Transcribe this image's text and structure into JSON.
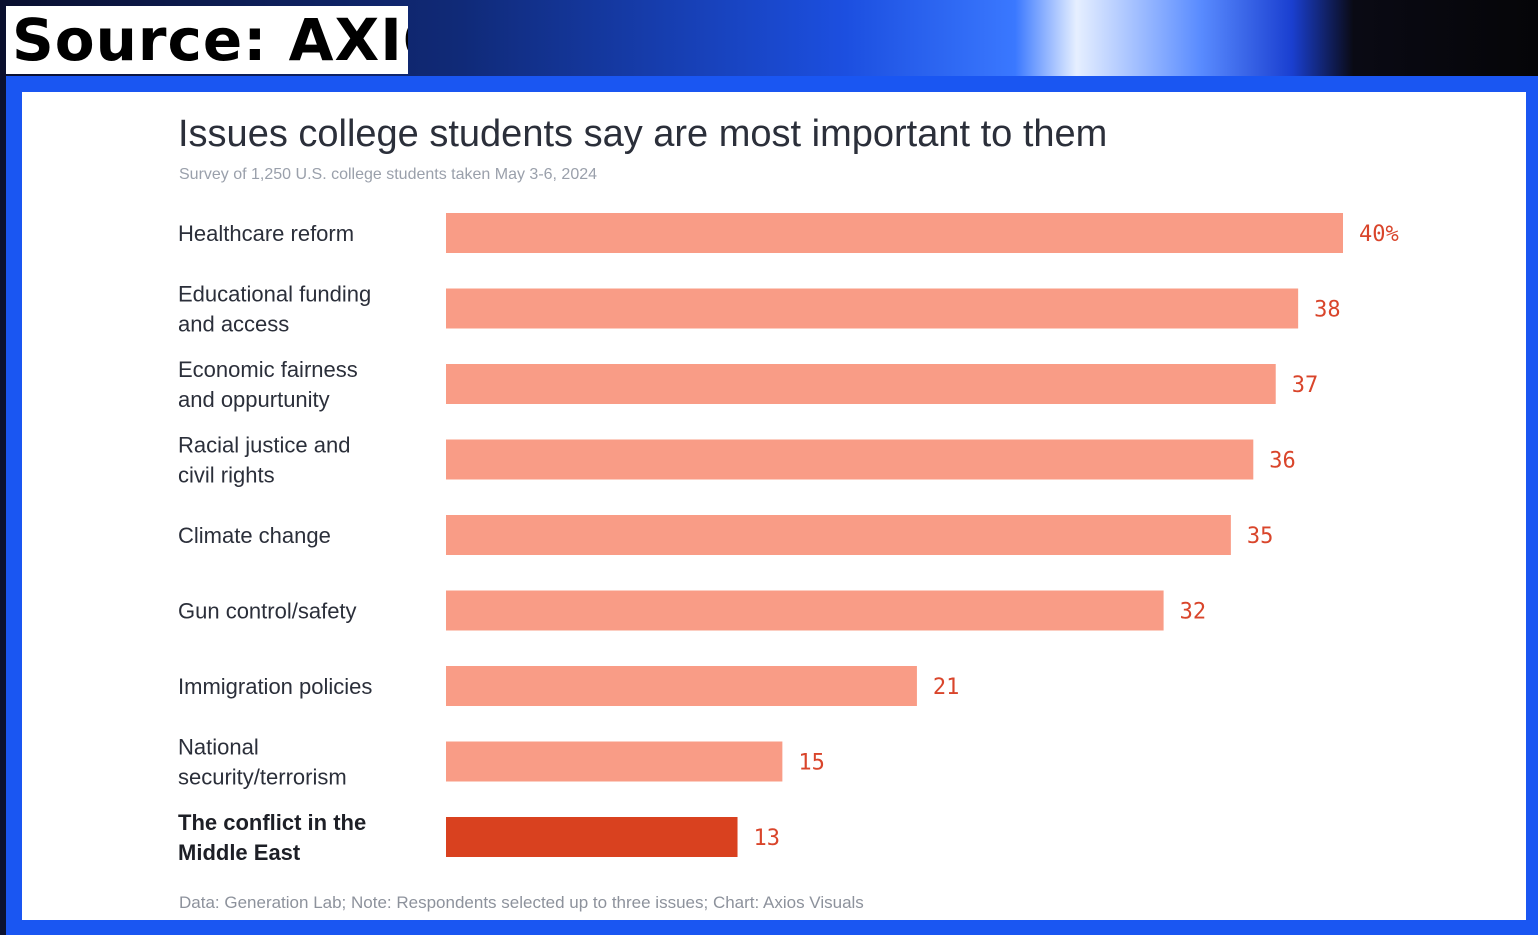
{
  "source_tag": "Source: AXIOS",
  "chart_data": {
    "type": "bar",
    "orientation": "horizontal",
    "title": "Issues college students say are most important to them",
    "subtitle": "Survey of 1,250 U.S. college students taken May 3-6, 2024",
    "footer": "Data: Generation Lab; Note: Respondents selected up to three issues; Chart: Axios Visuals",
    "categories": [
      [
        "Healthcare reform"
      ],
      [
        "Educational funding",
        "and access"
      ],
      [
        "Economic fairness",
        "and oppurtunity"
      ],
      [
        "Racial justice and",
        "civil rights"
      ],
      [
        "Climate change"
      ],
      [
        "Gun control/safety"
      ],
      [
        "Immigration policies"
      ],
      [
        "National",
        "security/terrorism"
      ],
      [
        "The conflict in the",
        "Middle East"
      ]
    ],
    "values": [
      40,
      38,
      37,
      36,
      35,
      32,
      21,
      15,
      13
    ],
    "value_labels": [
      "40%",
      "38",
      "37",
      "36",
      "35",
      "32",
      "21",
      "15",
      "13"
    ],
    "highlight_index": 8,
    "colors": {
      "bar": "#f99c86",
      "highlight": "#d9411f",
      "value_text": "#d9452b"
    },
    "xlim": [
      0,
      40
    ],
    "grid": false,
    "legend": "none"
  }
}
